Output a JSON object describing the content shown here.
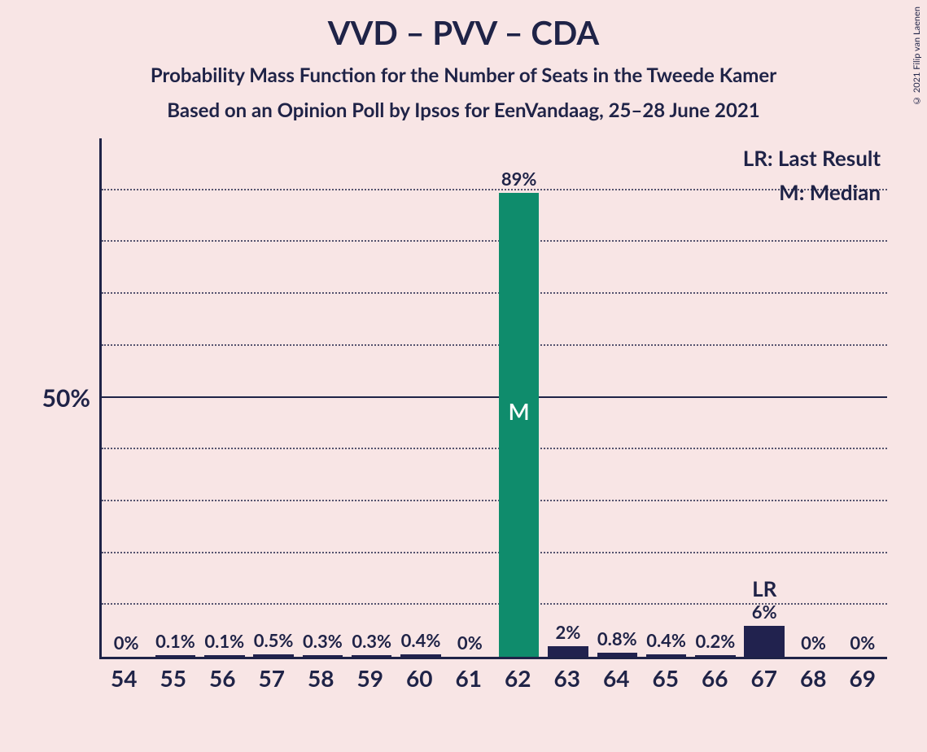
{
  "title": "VVD – PVV – CDA",
  "subtitle1": "Probability Mass Function for the Number of Seats in the Tweede Kamer",
  "subtitle2": "Based on an Opinion Poll by Ipsos for EenVandaag, 25–28 June 2021",
  "copyright": "© 2021 Filip van Laenen",
  "legend": {
    "lr": "LR: Last Result",
    "m": "M: Median"
  },
  "colors": {
    "background": "#f8e5e5",
    "text": "#1f2347",
    "bar_default": "#21224e",
    "bar_median": "#0f8c6c",
    "grid": "#1f2347"
  },
  "chart": {
    "type": "bar",
    "ylim": [
      0,
      100
    ],
    "y_major_tick": 50,
    "y_minor_step": 10,
    "y_label_at_50": "50%",
    "bar_width": 0.82,
    "categories": [
      "54",
      "55",
      "56",
      "57",
      "58",
      "59",
      "60",
      "61",
      "62",
      "63",
      "64",
      "65",
      "66",
      "67",
      "68",
      "69"
    ],
    "values": [
      0,
      0.1,
      0.1,
      0.5,
      0.3,
      0.3,
      0.4,
      0,
      89,
      2,
      0.8,
      0.4,
      0.2,
      6,
      0,
      0
    ],
    "value_labels": [
      "0%",
      "0.1%",
      "0.1%",
      "0.5%",
      "0.3%",
      "0.3%",
      "0.4%",
      "0%",
      "89%",
      "2%",
      "0.8%",
      "0.4%",
      "0.2%",
      "6%",
      "0%",
      "0%"
    ],
    "median_index": 8,
    "median_marker": "M",
    "lr_index": 13,
    "lr_marker": "LR"
  }
}
